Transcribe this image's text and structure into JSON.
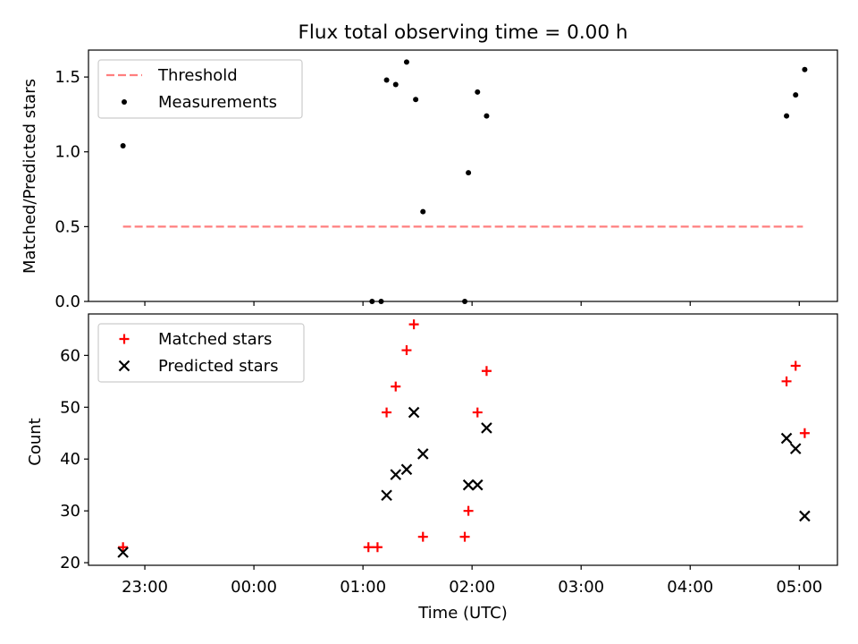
{
  "chart_data": {
    "title": "Flux total observing time = 0.00 h",
    "xlabel": "Time (UTC)",
    "x_ticks": [
      "23:00",
      "00:00",
      "01:00",
      "02:00",
      "03:00",
      "04:00",
      "05:00"
    ],
    "x_range": [
      "22:29",
      "05:21"
    ],
    "panels": [
      {
        "type": "scatter",
        "ylabel": "Matched/Predicted stars",
        "ylim": [
          0,
          1.68
        ],
        "y_ticks": [
          "0.0",
          "0.5",
          "1.0",
          "1.5"
        ],
        "legend_position": "top-left",
        "series": [
          {
            "name": "Threshold",
            "style": "dashed-line",
            "color": "#ff7f7f",
            "points": [
              [
                "22:48",
                0.5
              ],
              [
                "05:02",
                0.5
              ]
            ]
          },
          {
            "name": "Measurements",
            "style": "dot",
            "color": "#000000",
            "points": [
              [
                "22:48",
                1.04
              ],
              [
                "01:05",
                0.0
              ],
              [
                "01:10",
                0.0
              ],
              [
                "01:13",
                1.48
              ],
              [
                "01:18",
                1.45
              ],
              [
                "01:24",
                1.6
              ],
              [
                "01:29",
                1.35
              ],
              [
                "01:33",
                0.6
              ],
              [
                "01:56",
                0.0
              ],
              [
                "01:58",
                0.86
              ],
              [
                "02:03",
                1.4
              ],
              [
                "02:08",
                1.24
              ],
              [
                "04:53",
                1.24
              ],
              [
                "04:58",
                1.38
              ],
              [
                "05:03",
                1.55
              ]
            ]
          }
        ]
      },
      {
        "type": "scatter",
        "ylabel": "Count",
        "ylim": [
          19.5,
          68
        ],
        "y_ticks": [
          "20",
          "30",
          "40",
          "50",
          "60"
        ],
        "legend_position": "top-left",
        "series": [
          {
            "name": "Matched stars",
            "marker": "plus",
            "color": "#ff0000",
            "points": [
              [
                "22:48",
                23
              ],
              [
                "01:03",
                23
              ],
              [
                "01:08",
                23
              ],
              [
                "01:13",
                49
              ],
              [
                "01:18",
                54
              ],
              [
                "01:24",
                61
              ],
              [
                "01:28",
                66
              ],
              [
                "01:33",
                25
              ],
              [
                "01:56",
                25
              ],
              [
                "01:58",
                30
              ],
              [
                "02:03",
                49
              ],
              [
                "02:08",
                57
              ],
              [
                "04:53",
                55
              ],
              [
                "04:58",
                58
              ],
              [
                "05:03",
                45
              ]
            ]
          },
          {
            "name": "Predicted stars",
            "marker": "x",
            "color": "#000000",
            "points": [
              [
                "22:48",
                22
              ],
              [
                "01:13",
                33
              ],
              [
                "01:18",
                37
              ],
              [
                "01:24",
                38
              ],
              [
                "01:28",
                49
              ],
              [
                "01:33",
                41
              ],
              [
                "01:58",
                35
              ],
              [
                "02:03",
                35
              ],
              [
                "02:08",
                46
              ],
              [
                "04:53",
                44
              ],
              [
                "04:58",
                42
              ],
              [
                "05:03",
                29
              ]
            ]
          }
        ]
      }
    ]
  }
}
